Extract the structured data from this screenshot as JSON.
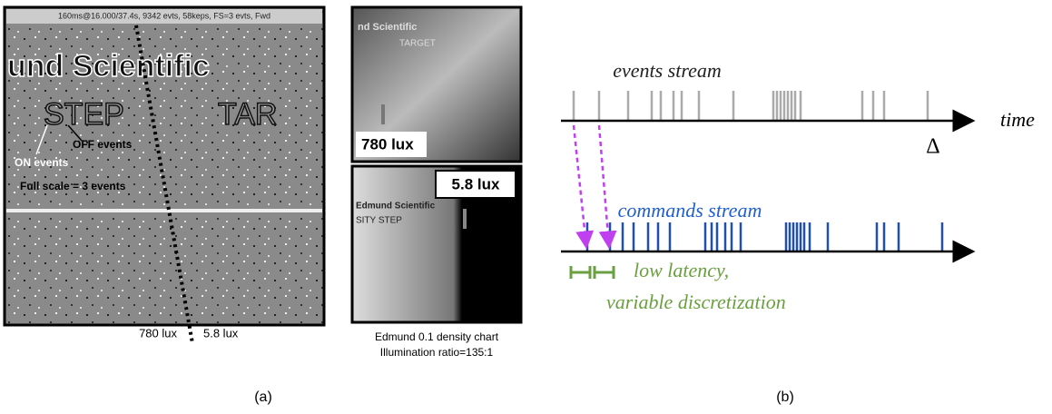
{
  "panel_a": {
    "header": "160ms@16.000/37.4s, 9342 evts, 58keps, FS=3 evts,  Fwd",
    "image_text": [
      "und Scientific",
      "STEP",
      "TAR"
    ],
    "annotations": {
      "on": "ON events",
      "off": "OFF events",
      "scale": "Full scale = 3 events"
    },
    "lux_left": "780 lux",
    "lux_right": "5.8 lux",
    "insets": [
      {
        "texts": [
          "nd Scientific",
          "TARGET"
        ],
        "lux": "780 lux"
      },
      {
        "texts": [
          "Edmund Scientific",
          "SITY STEP"
        ],
        "lux": "5.8 lux"
      }
    ],
    "caption": [
      "Edmund 0.1 density chart",
      "Illumination ratio=135:1"
    ],
    "label": "(a)"
  },
  "panel_b": {
    "events_title": "events stream",
    "time_label": "time",
    "delta": "Δ",
    "commands_title": "commands stream",
    "latency": [
      "low latency,",
      "variable discretization"
    ],
    "label": "(b)"
  }
}
